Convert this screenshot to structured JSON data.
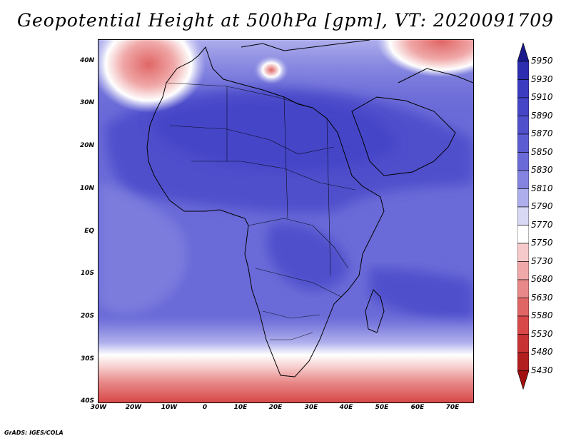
{
  "title": "Geopotential Height at 500hPa [gpm], VT: 2020091709",
  "map": {
    "lon_ticks": [
      "30W",
      "20W",
      "10W",
      "0",
      "10E",
      "20E",
      "30E",
      "40E",
      "50E",
      "60E",
      "70E"
    ],
    "lat_ticks": [
      "40N",
      "30N",
      "20N",
      "10N",
      "EQ",
      "10S",
      "20S",
      "30S",
      "40S"
    ],
    "lon_range": [
      -30,
      77
    ],
    "lat_range": [
      -40,
      44
    ]
  },
  "colorbar": {
    "levels": [
      "5950",
      "5930",
      "5910",
      "5890",
      "5870",
      "5850",
      "5830",
      "5810",
      "5790",
      "5770",
      "5750",
      "5730",
      "5680",
      "5630",
      "5580",
      "5530",
      "5480",
      "5430"
    ],
    "colors": [
      "#1a1a8c",
      "#2d2db0",
      "#3b3bc0",
      "#4545c8",
      "#5050cc",
      "#5c5cd2",
      "#6a6ad8",
      "#8484e0",
      "#aeaeec",
      "#d8d8f5",
      "#ffffff",
      "#f6caca",
      "#f0a8a8",
      "#e88888",
      "#e06666",
      "#d84848",
      "#c83232",
      "#b21e1e",
      "#a01010"
    ]
  },
  "credit": "GrADS: IGES/COLA"
}
